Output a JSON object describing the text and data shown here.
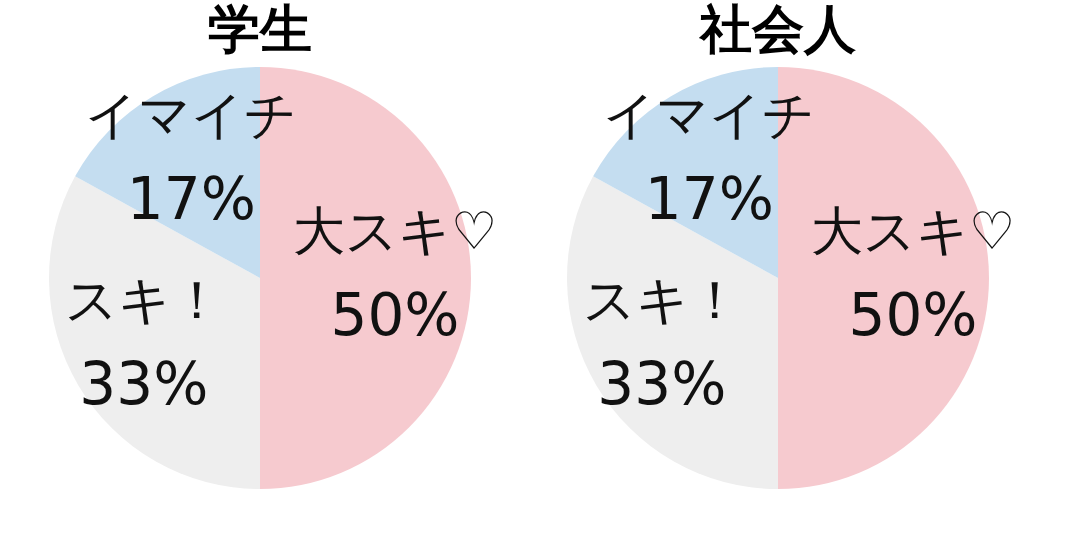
{
  "chart_data": [
    {
      "type": "pie",
      "title": "学生",
      "categories": [
        "大スキ♡",
        "スキ！",
        "イマイチ"
      ],
      "values": [
        50,
        33,
        17
      ],
      "value_labels": [
        "50%",
        "33%",
        "17%"
      ],
      "colors": [
        "#f6cacf",
        "#eeeeee",
        "#c4ddf0"
      ],
      "legend": false
    },
    {
      "type": "pie",
      "title": "社会人",
      "categories": [
        "大スキ♡",
        "スキ！",
        "イマイチ"
      ],
      "values": [
        50,
        33,
        17
      ],
      "value_labels": [
        "50%",
        "33%",
        "17%"
      ],
      "colors": [
        "#f6cacf",
        "#eeeeee",
        "#c4ddf0"
      ],
      "legend": false
    }
  ]
}
